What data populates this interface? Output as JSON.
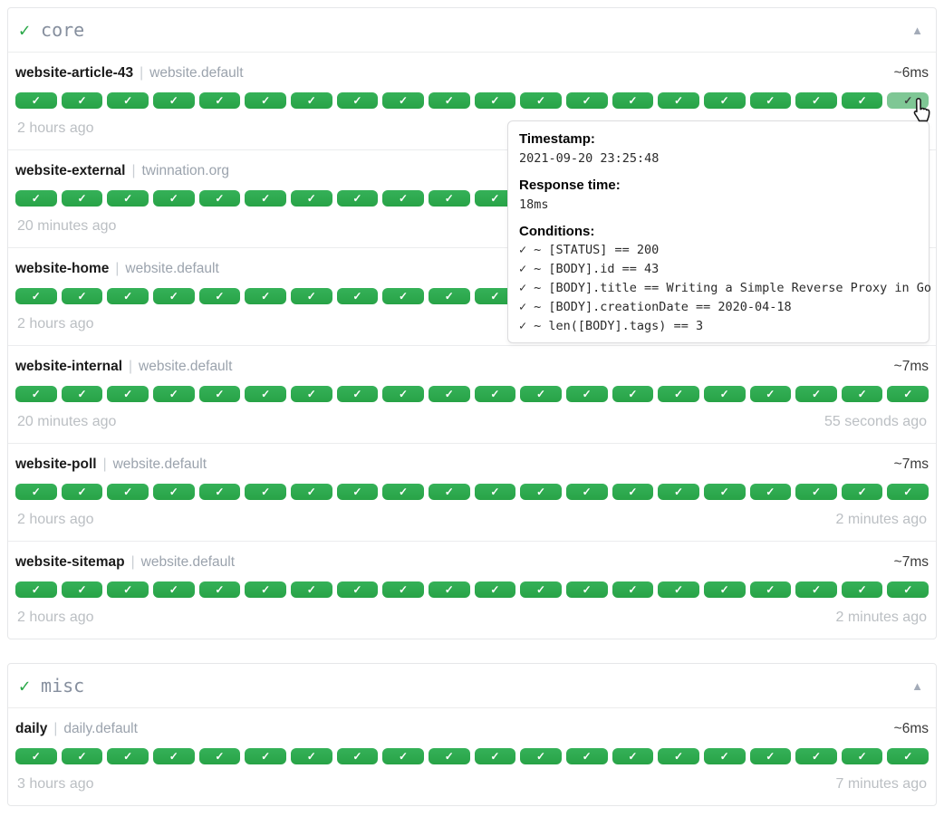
{
  "icons": {
    "group_status_check": "✓",
    "collapse_arrow": "▲",
    "badge_check": "✓",
    "condition_check": "✓"
  },
  "colors": {
    "badge_green": "#2ea44f",
    "badge_green_hover": "#7fc795",
    "group_check_green": "#27a746",
    "muted_text": "#bbbfc3"
  },
  "service_separator": "|",
  "groups": [
    {
      "name": "core",
      "services": [
        {
          "name": "website-article-43",
          "group_label": "website.default",
          "response_time": "~6ms",
          "badge_count": 20,
          "hovered_badge_index": 19,
          "left_time": "2 hours ago",
          "right_time": ""
        },
        {
          "name": "website-external",
          "group_label": "twinnation.org",
          "response_time": "",
          "badge_count": 20,
          "hovered_badge_index": null,
          "left_time": "20 minutes ago",
          "right_time": ""
        },
        {
          "name": "website-home",
          "group_label": "website.default",
          "response_time": "",
          "badge_count": 20,
          "hovered_badge_index": null,
          "left_time": "2 hours ago",
          "right_time": ""
        },
        {
          "name": "website-internal",
          "group_label": "website.default",
          "response_time": "~7ms",
          "badge_count": 20,
          "hovered_badge_index": null,
          "left_time": "20 minutes ago",
          "right_time": "55 seconds ago"
        },
        {
          "name": "website-poll",
          "group_label": "website.default",
          "response_time": "~7ms",
          "badge_count": 20,
          "hovered_badge_index": null,
          "left_time": "2 hours ago",
          "right_time": "2 minutes ago"
        },
        {
          "name": "website-sitemap",
          "group_label": "website.default",
          "response_time": "~7ms",
          "badge_count": 20,
          "hovered_badge_index": null,
          "left_time": "2 hours ago",
          "right_time": "2 minutes ago"
        }
      ]
    },
    {
      "name": "misc",
      "services": [
        {
          "name": "daily",
          "group_label": "daily.default",
          "response_time": "~6ms",
          "badge_count": 20,
          "hovered_badge_index": null,
          "left_time": "3 hours ago",
          "right_time": "7 minutes ago"
        }
      ]
    }
  ],
  "tooltip": {
    "timestamp_label": "Timestamp:",
    "timestamp_value": "2021-09-20 23:25:48",
    "response_time_label": "Response time:",
    "response_time_value": "18ms",
    "conditions_label": "Conditions:",
    "conditions": [
      "~ [STATUS] == 200",
      "~ [BODY].id == 43",
      "~ [BODY].title == Writing a Simple Reverse Proxy in Go",
      "~ [BODY].creationDate == 2020-04-18",
      "~ len([BODY].tags) == 3"
    ]
  }
}
